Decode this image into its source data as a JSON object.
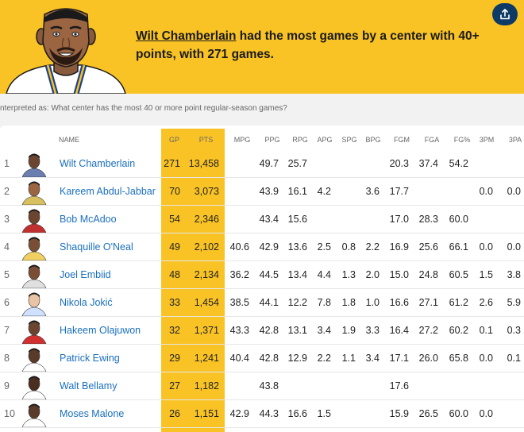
{
  "headline": {
    "player": "Wilt Chamberlain",
    "rest": " had the most games by a center with 40+ points, with 271 games."
  },
  "interpreted": "nterpreted as: What center has the most 40 or more point regular-season games?",
  "columns": [
    "NAME",
    "GP",
    "PTS",
    "MPG",
    "PPG",
    "RPG",
    "APG",
    "SPG",
    "BPG",
    "FGM",
    "FGA",
    "FG%",
    "3PM",
    "3PA"
  ],
  "rows": [
    {
      "rank": "1",
      "name": "Wilt Chamberlain",
      "stats": [
        "271",
        "13,458",
        "",
        "49.7",
        "25.7",
        "",
        "",
        "",
        "20.3",
        "37.4",
        "54.2",
        "",
        ""
      ]
    },
    {
      "rank": "2",
      "name": "Kareem Abdul-Jabbar",
      "stats": [
        "70",
        "3,073",
        "",
        "43.9",
        "16.1",
        "4.2",
        "",
        "3.6",
        "17.7",
        "",
        "",
        "0.0",
        "0.0"
      ]
    },
    {
      "rank": "3",
      "name": "Bob McAdoo",
      "stats": [
        "54",
        "2,346",
        "",
        "43.4",
        "15.6",
        "",
        "",
        "",
        "17.0",
        "28.3",
        "60.0",
        "",
        ""
      ]
    },
    {
      "rank": "4",
      "name": "Shaquille O'Neal",
      "stats": [
        "49",
        "2,102",
        "40.6",
        "42.9",
        "13.6",
        "2.5",
        "0.8",
        "2.2",
        "16.9",
        "25.6",
        "66.1",
        "0.0",
        "0.0"
      ]
    },
    {
      "rank": "5",
      "name": "Joel Embiid",
      "stats": [
        "48",
        "2,134",
        "36.2",
        "44.5",
        "13.4",
        "4.4",
        "1.3",
        "2.0",
        "15.0",
        "24.8",
        "60.5",
        "1.5",
        "3.8"
      ]
    },
    {
      "rank": "6",
      "name": "Nikola Jokić",
      "stats": [
        "33",
        "1,454",
        "38.5",
        "44.1",
        "12.2",
        "7.8",
        "1.8",
        "1.0",
        "16.6",
        "27.1",
        "61.2",
        "2.6",
        "5.9"
      ]
    },
    {
      "rank": "7",
      "name": "Hakeem Olajuwon",
      "stats": [
        "32",
        "1,371",
        "43.3",
        "42.8",
        "13.1",
        "3.4",
        "1.9",
        "3.3",
        "16.4",
        "27.2",
        "60.2",
        "0.1",
        "0.3"
      ]
    },
    {
      "rank": "8",
      "name": "Patrick Ewing",
      "stats": [
        "29",
        "1,241",
        "40.4",
        "42.8",
        "12.9",
        "2.2",
        "1.1",
        "3.4",
        "17.1",
        "26.0",
        "65.8",
        "0.0",
        "0.1"
      ]
    },
    {
      "rank": "9",
      "name": "Walt Bellamy",
      "stats": [
        "27",
        "1,182",
        "",
        "43.8",
        "",
        "",
        "",
        "",
        "17.6",
        "",
        "",
        "",
        ""
      ]
    },
    {
      "rank": "10",
      "name": "Moses Malone",
      "stats": [
        "26",
        "1,151",
        "42.9",
        "44.3",
        "16.6",
        "1.5",
        "",
        "",
        "15.9",
        "26.5",
        "60.0",
        "0.0",
        ""
      ]
    }
  ],
  "colors": {
    "accent": "#f9c326",
    "link": "#1a6fbf",
    "share": "#0d3b66"
  },
  "icons": {
    "share": "share-upload-icon"
  }
}
